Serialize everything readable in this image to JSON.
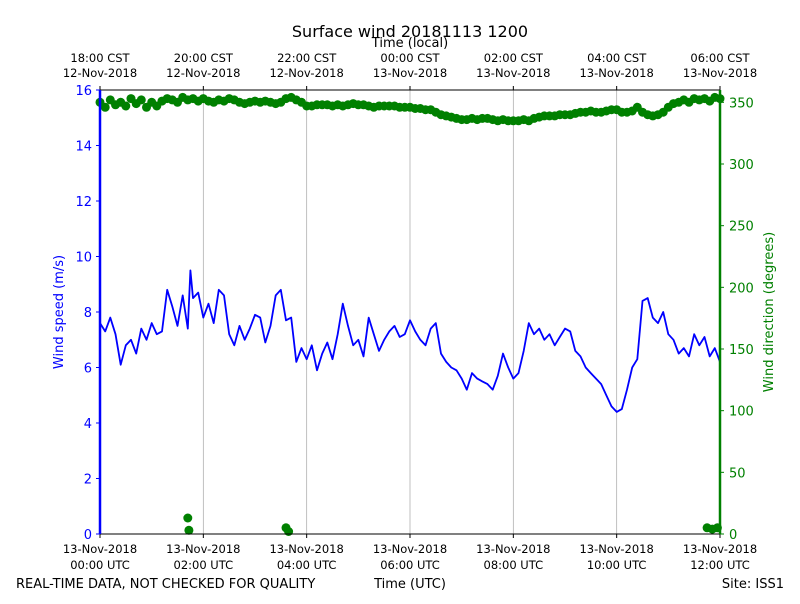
{
  "chart_data": {
    "type": "line",
    "title": "Surface wind 20181113 1200",
    "top_axis_title": "Time (local)",
    "xlabel": "Time (UTC)",
    "ylabel_left": "Wind speed (m/s)",
    "ylabel_right": "Wind direction (degrees)",
    "footer_left": "REAL-TIME DATA, NOT CHECKED FOR QUALITY",
    "footer_right": "Site: ISS1",
    "x_unit": "hours since 13-Nov-2018 00:00 UTC",
    "xlim": [
      0,
      12
    ],
    "ylim_left": [
      0,
      16
    ],
    "ylim_right": [
      0,
      360
    ],
    "grid": "vertical",
    "colors": {
      "speed": "#0000ff",
      "direction": "#008000",
      "axis": "#000000",
      "grid": "#b0b0b0"
    },
    "bottom_ticks": [
      {
        "x": 0,
        "date": "13-Nov-2018",
        "time": "00:00 UTC"
      },
      {
        "x": 2,
        "date": "13-Nov-2018",
        "time": "02:00 UTC"
      },
      {
        "x": 4,
        "date": "13-Nov-2018",
        "time": "04:00 UTC"
      },
      {
        "x": 6,
        "date": "13-Nov-2018",
        "time": "06:00 UTC"
      },
      {
        "x": 8,
        "date": "13-Nov-2018",
        "time": "08:00 UTC"
      },
      {
        "x": 10,
        "date": "13-Nov-2018",
        "time": "10:00 UTC"
      },
      {
        "x": 12,
        "date": "13-Nov-2018",
        "time": "12:00 UTC"
      }
    ],
    "top_ticks": [
      {
        "x": 0,
        "time": "18:00 CST",
        "date": "12-Nov-2018"
      },
      {
        "x": 2,
        "time": "20:00 CST",
        "date": "12-Nov-2018"
      },
      {
        "x": 4,
        "time": "22:00 CST",
        "date": "12-Nov-2018"
      },
      {
        "x": 6,
        "time": "00:00 CST",
        "date": "13-Nov-2018"
      },
      {
        "x": 8,
        "time": "02:00 CST",
        "date": "13-Nov-2018"
      },
      {
        "x": 10,
        "time": "04:00 CST",
        "date": "13-Nov-2018"
      },
      {
        "x": 12,
        "time": "06:00 CST",
        "date": "13-Nov-2018"
      }
    ],
    "left_ticks": [
      0,
      2,
      4,
      6,
      8,
      10,
      12,
      14,
      16
    ],
    "right_ticks": [
      0,
      50,
      100,
      150,
      200,
      250,
      300,
      350
    ],
    "series": [
      {
        "name": "Wind speed",
        "axis": "left",
        "style": "line",
        "x": [
          0,
          0.1,
          0.2,
          0.3,
          0.4,
          0.5,
          0.6,
          0.7,
          0.8,
          0.9,
          1.0,
          1.1,
          1.2,
          1.3,
          1.4,
          1.5,
          1.6,
          1.7,
          1.75,
          1.8,
          1.9,
          2.0,
          2.1,
          2.2,
          2.3,
          2.4,
          2.5,
          2.6,
          2.7,
          2.8,
          2.9,
          3.0,
          3.1,
          3.2,
          3.3,
          3.4,
          3.5,
          3.6,
          3.7,
          3.8,
          3.9,
          4.0,
          4.1,
          4.2,
          4.3,
          4.4,
          4.5,
          4.6,
          4.7,
          4.8,
          4.9,
          5.0,
          5.1,
          5.2,
          5.3,
          5.4,
          5.5,
          5.6,
          5.7,
          5.8,
          5.9,
          6.0,
          6.1,
          6.2,
          6.3,
          6.4,
          6.5,
          6.6,
          6.7,
          6.8,
          6.9,
          7.0,
          7.1,
          7.2,
          7.3,
          7.4,
          7.5,
          7.6,
          7.7,
          7.8,
          7.9,
          8.0,
          8.1,
          8.2,
          8.3,
          8.4,
          8.5,
          8.6,
          8.7,
          8.8,
          8.9,
          9.0,
          9.1,
          9.2,
          9.3,
          9.4,
          9.5,
          9.6,
          9.7,
          9.8,
          9.9,
          10.0,
          10.1,
          10.2,
          10.3,
          10.4,
          10.5,
          10.6,
          10.7,
          10.8,
          10.9,
          11.0,
          11.1,
          11.2,
          11.3,
          11.4,
          11.5,
          11.6,
          11.7,
          11.8,
          11.9,
          12.0
        ],
        "values": [
          7.6,
          7.3,
          7.8,
          7.2,
          6.1,
          6.8,
          7.0,
          6.5,
          7.4,
          7.0,
          7.6,
          7.2,
          7.3,
          8.8,
          8.2,
          7.5,
          8.6,
          7.4,
          9.5,
          8.5,
          8.7,
          7.8,
          8.3,
          7.6,
          8.8,
          8.6,
          7.2,
          6.8,
          7.5,
          7.0,
          7.4,
          7.9,
          7.8,
          6.9,
          7.5,
          8.6,
          8.8,
          7.7,
          7.8,
          6.2,
          6.7,
          6.3,
          6.8,
          5.9,
          6.5,
          6.9,
          6.3,
          7.2,
          8.3,
          7.5,
          6.8,
          7.0,
          6.4,
          7.8,
          7.2,
          6.6,
          7.0,
          7.3,
          7.5,
          7.1,
          7.2,
          7.7,
          7.3,
          7.0,
          6.8,
          7.4,
          7.6,
          6.5,
          6.2,
          6.0,
          5.9,
          5.6,
          5.2,
          5.8,
          5.6,
          5.5,
          5.4,
          5.2,
          5.7,
          6.5,
          6.0,
          5.6,
          5.8,
          6.6,
          7.6,
          7.2,
          7.4,
          7.0,
          7.2,
          6.8,
          7.1,
          7.4,
          7.3,
          6.6,
          6.4,
          6.0,
          5.8,
          5.6,
          5.4,
          5.0,
          4.6,
          4.4,
          4.5,
          5.2,
          6.0,
          6.3,
          8.4,
          8.5,
          7.8,
          7.6,
          8.0,
          7.2,
          7.0,
          6.5,
          6.7,
          6.4,
          7.2,
          6.8,
          7.1,
          6.4,
          6.7,
          6.2
        ]
      },
      {
        "name": "Wind direction",
        "axis": "right",
        "style": "markers",
        "x": [
          0,
          0.1,
          0.2,
          0.3,
          0.4,
          0.5,
          0.6,
          0.7,
          0.8,
          0.9,
          1.0,
          1.1,
          1.2,
          1.3,
          1.4,
          1.5,
          1.6,
          1.7,
          1.8,
          1.9,
          2.0,
          2.1,
          2.2,
          2.3,
          2.4,
          2.5,
          2.6,
          2.7,
          2.8,
          2.9,
          3.0,
          3.1,
          3.2,
          3.3,
          3.4,
          3.5,
          3.6,
          3.7,
          3.8,
          3.9,
          4.0,
          4.1,
          4.2,
          4.3,
          4.4,
          4.5,
          4.6,
          4.7,
          4.8,
          4.9,
          5.0,
          5.1,
          5.2,
          5.3,
          5.4,
          5.5,
          5.6,
          5.7,
          5.8,
          5.9,
          6.0,
          6.1,
          6.2,
          6.3,
          6.4,
          6.5,
          6.6,
          6.7,
          6.8,
          6.9,
          7.0,
          7.1,
          7.2,
          7.3,
          7.4,
          7.5,
          7.6,
          7.7,
          7.8,
          7.9,
          8.0,
          8.1,
          8.2,
          8.3,
          8.4,
          8.5,
          8.6,
          8.7,
          8.8,
          8.9,
          9.0,
          9.1,
          9.2,
          9.3,
          9.4,
          9.5,
          9.6,
          9.7,
          9.8,
          9.9,
          10.0,
          10.1,
          10.2,
          10.3,
          10.4,
          10.5,
          10.6,
          10.7,
          10.8,
          10.9,
          11.0,
          11.1,
          11.2,
          11.3,
          11.4,
          11.5,
          11.6,
          11.7,
          11.8,
          11.9,
          12.0,
          1.7,
          1.72,
          3.6,
          3.65,
          11.75,
          11.85,
          11.95
        ],
        "values": [
          350,
          346,
          352,
          348,
          350,
          347,
          353,
          349,
          352,
          346,
          350,
          347,
          351,
          353,
          352,
          350,
          354,
          352,
          353,
          351,
          353,
          351,
          350,
          352,
          351,
          353,
          352,
          350,
          349,
          350,
          351,
          350,
          351,
          350,
          349,
          350,
          353,
          354,
          352,
          350,
          347,
          347,
          348,
          348,
          348,
          347,
          348,
          347,
          348,
          349,
          348,
          348,
          347,
          346,
          347,
          347,
          347,
          347,
          346,
          346,
          346,
          345,
          345,
          344,
          344,
          342,
          340,
          339,
          338,
          337,
          336,
          336,
          337,
          336,
          337,
          337,
          336,
          335,
          336,
          335,
          335,
          335,
          336,
          335,
          337,
          338,
          339,
          339,
          339,
          340,
          340,
          340,
          341,
          342,
          342,
          343,
          342,
          342,
          343,
          344,
          344,
          342,
          342,
          343,
          346,
          342,
          340,
          339,
          340,
          342,
          346,
          349,
          350,
          352,
          350,
          353,
          352,
          353,
          351,
          354,
          353,
          13,
          3,
          5,
          2,
          5,
          4,
          5
        ]
      }
    ]
  }
}
